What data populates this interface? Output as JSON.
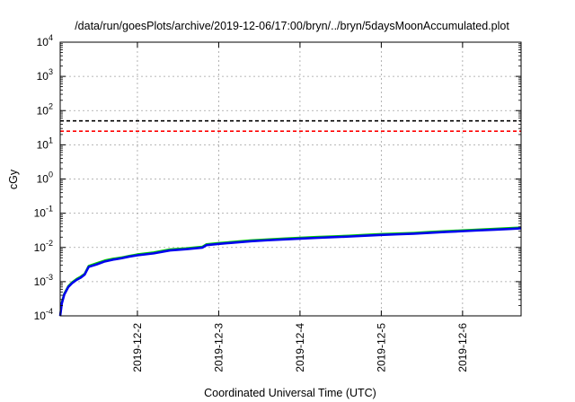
{
  "chart_data": {
    "type": "line",
    "title": "/data/run/goesPlots/archive/2019-12-06/17:00/bryn/../bryn/5daysMoonAccumulated.plot",
    "xlabel": "Coordinated Universal Time (UTC)",
    "ylabel": "cGy",
    "x_unit": "day of December 2019 (UTC)",
    "xlim": [
      1.05,
      6.72
    ],
    "ylim": [
      0.0001,
      10000
    ],
    "y_scale": "log",
    "grid": true,
    "x_ticks": [
      {
        "value": 2,
        "label": "2019-12-2"
      },
      {
        "value": 3,
        "label": "2019-12-3"
      },
      {
        "value": 4,
        "label": "2019-12-4"
      },
      {
        "value": 5,
        "label": "2019-12-5"
      },
      {
        "value": 6,
        "label": "2019-12-6"
      }
    ],
    "y_ticks": [
      {
        "value": 0.0001,
        "base": "10",
        "exp": "-4"
      },
      {
        "value": 0.001,
        "base": "10",
        "exp": "-3"
      },
      {
        "value": 0.01,
        "base": "10",
        "exp": "-2"
      },
      {
        "value": 0.1,
        "base": "10",
        "exp": "-1"
      },
      {
        "value": 1,
        "base": "10",
        "exp": "0"
      },
      {
        "value": 10,
        "base": "10",
        "exp": "1"
      },
      {
        "value": 100,
        "base": "10",
        "exp": "2"
      },
      {
        "value": 1000,
        "base": "10",
        "exp": "3"
      },
      {
        "value": 10000,
        "base": "10",
        "exp": "4"
      }
    ],
    "thresholds": [
      {
        "value": 50,
        "color": "#000000"
      },
      {
        "value": 25,
        "color": "#ff0000"
      }
    ],
    "series": [
      {
        "color": "#00cc00",
        "width": 2.2,
        "x": [
          1.05,
          1.07,
          1.1,
          1.15,
          1.2,
          1.25,
          1.3,
          1.35,
          1.4,
          1.5,
          1.6,
          1.7,
          1.8,
          1.9,
          2.0,
          2.2,
          2.4,
          2.6,
          2.8,
          2.85,
          3.0,
          3.2,
          3.4,
          3.6,
          3.8,
          4.0,
          4.2,
          4.4,
          4.6,
          4.8,
          5.0,
          5.2,
          5.4,
          5.6,
          5.8,
          6.0,
          6.2,
          6.4,
          6.6,
          6.72
        ],
        "y": [
          0.0001,
          0.00025,
          0.00045,
          0.00075,
          0.00098,
          0.0012,
          0.0014,
          0.0017,
          0.0029,
          0.0035,
          0.0042,
          0.0047,
          0.0051,
          0.0057,
          0.0063,
          0.0072,
          0.0088,
          0.0095,
          0.0106,
          0.0125,
          0.0135,
          0.0148,
          0.0162,
          0.0172,
          0.0183,
          0.0193,
          0.0203,
          0.0212,
          0.0222,
          0.0235,
          0.0248,
          0.0258,
          0.0268,
          0.0285,
          0.0302,
          0.0318,
          0.0335,
          0.0352,
          0.0372,
          0.0385
        ]
      },
      {
        "color": "#0000ee",
        "width": 2.6,
        "x": [
          1.05,
          1.07,
          1.1,
          1.15,
          1.2,
          1.25,
          1.3,
          1.35,
          1.4,
          1.5,
          1.6,
          1.7,
          1.8,
          1.9,
          2.0,
          2.2,
          2.4,
          2.6,
          2.8,
          2.85,
          3.0,
          3.2,
          3.4,
          3.6,
          3.8,
          4.0,
          4.2,
          4.4,
          4.6,
          4.8,
          5.0,
          5.2,
          5.4,
          5.6,
          5.8,
          6.0,
          6.2,
          6.4,
          6.6,
          6.72
        ],
        "y": [
          0.0001,
          0.00023,
          0.00042,
          0.0007,
          0.00092,
          0.00112,
          0.0013,
          0.0016,
          0.0027,
          0.0032,
          0.0039,
          0.0044,
          0.0048,
          0.0054,
          0.0059,
          0.0067,
          0.0082,
          0.0089,
          0.0099,
          0.0117,
          0.0127,
          0.0139,
          0.0152,
          0.0162,
          0.0172,
          0.0181,
          0.019,
          0.0199,
          0.0208,
          0.022,
          0.0232,
          0.0242,
          0.0252,
          0.0268,
          0.0284,
          0.0299,
          0.0315,
          0.033,
          0.0349,
          0.0362
        ]
      }
    ]
  }
}
